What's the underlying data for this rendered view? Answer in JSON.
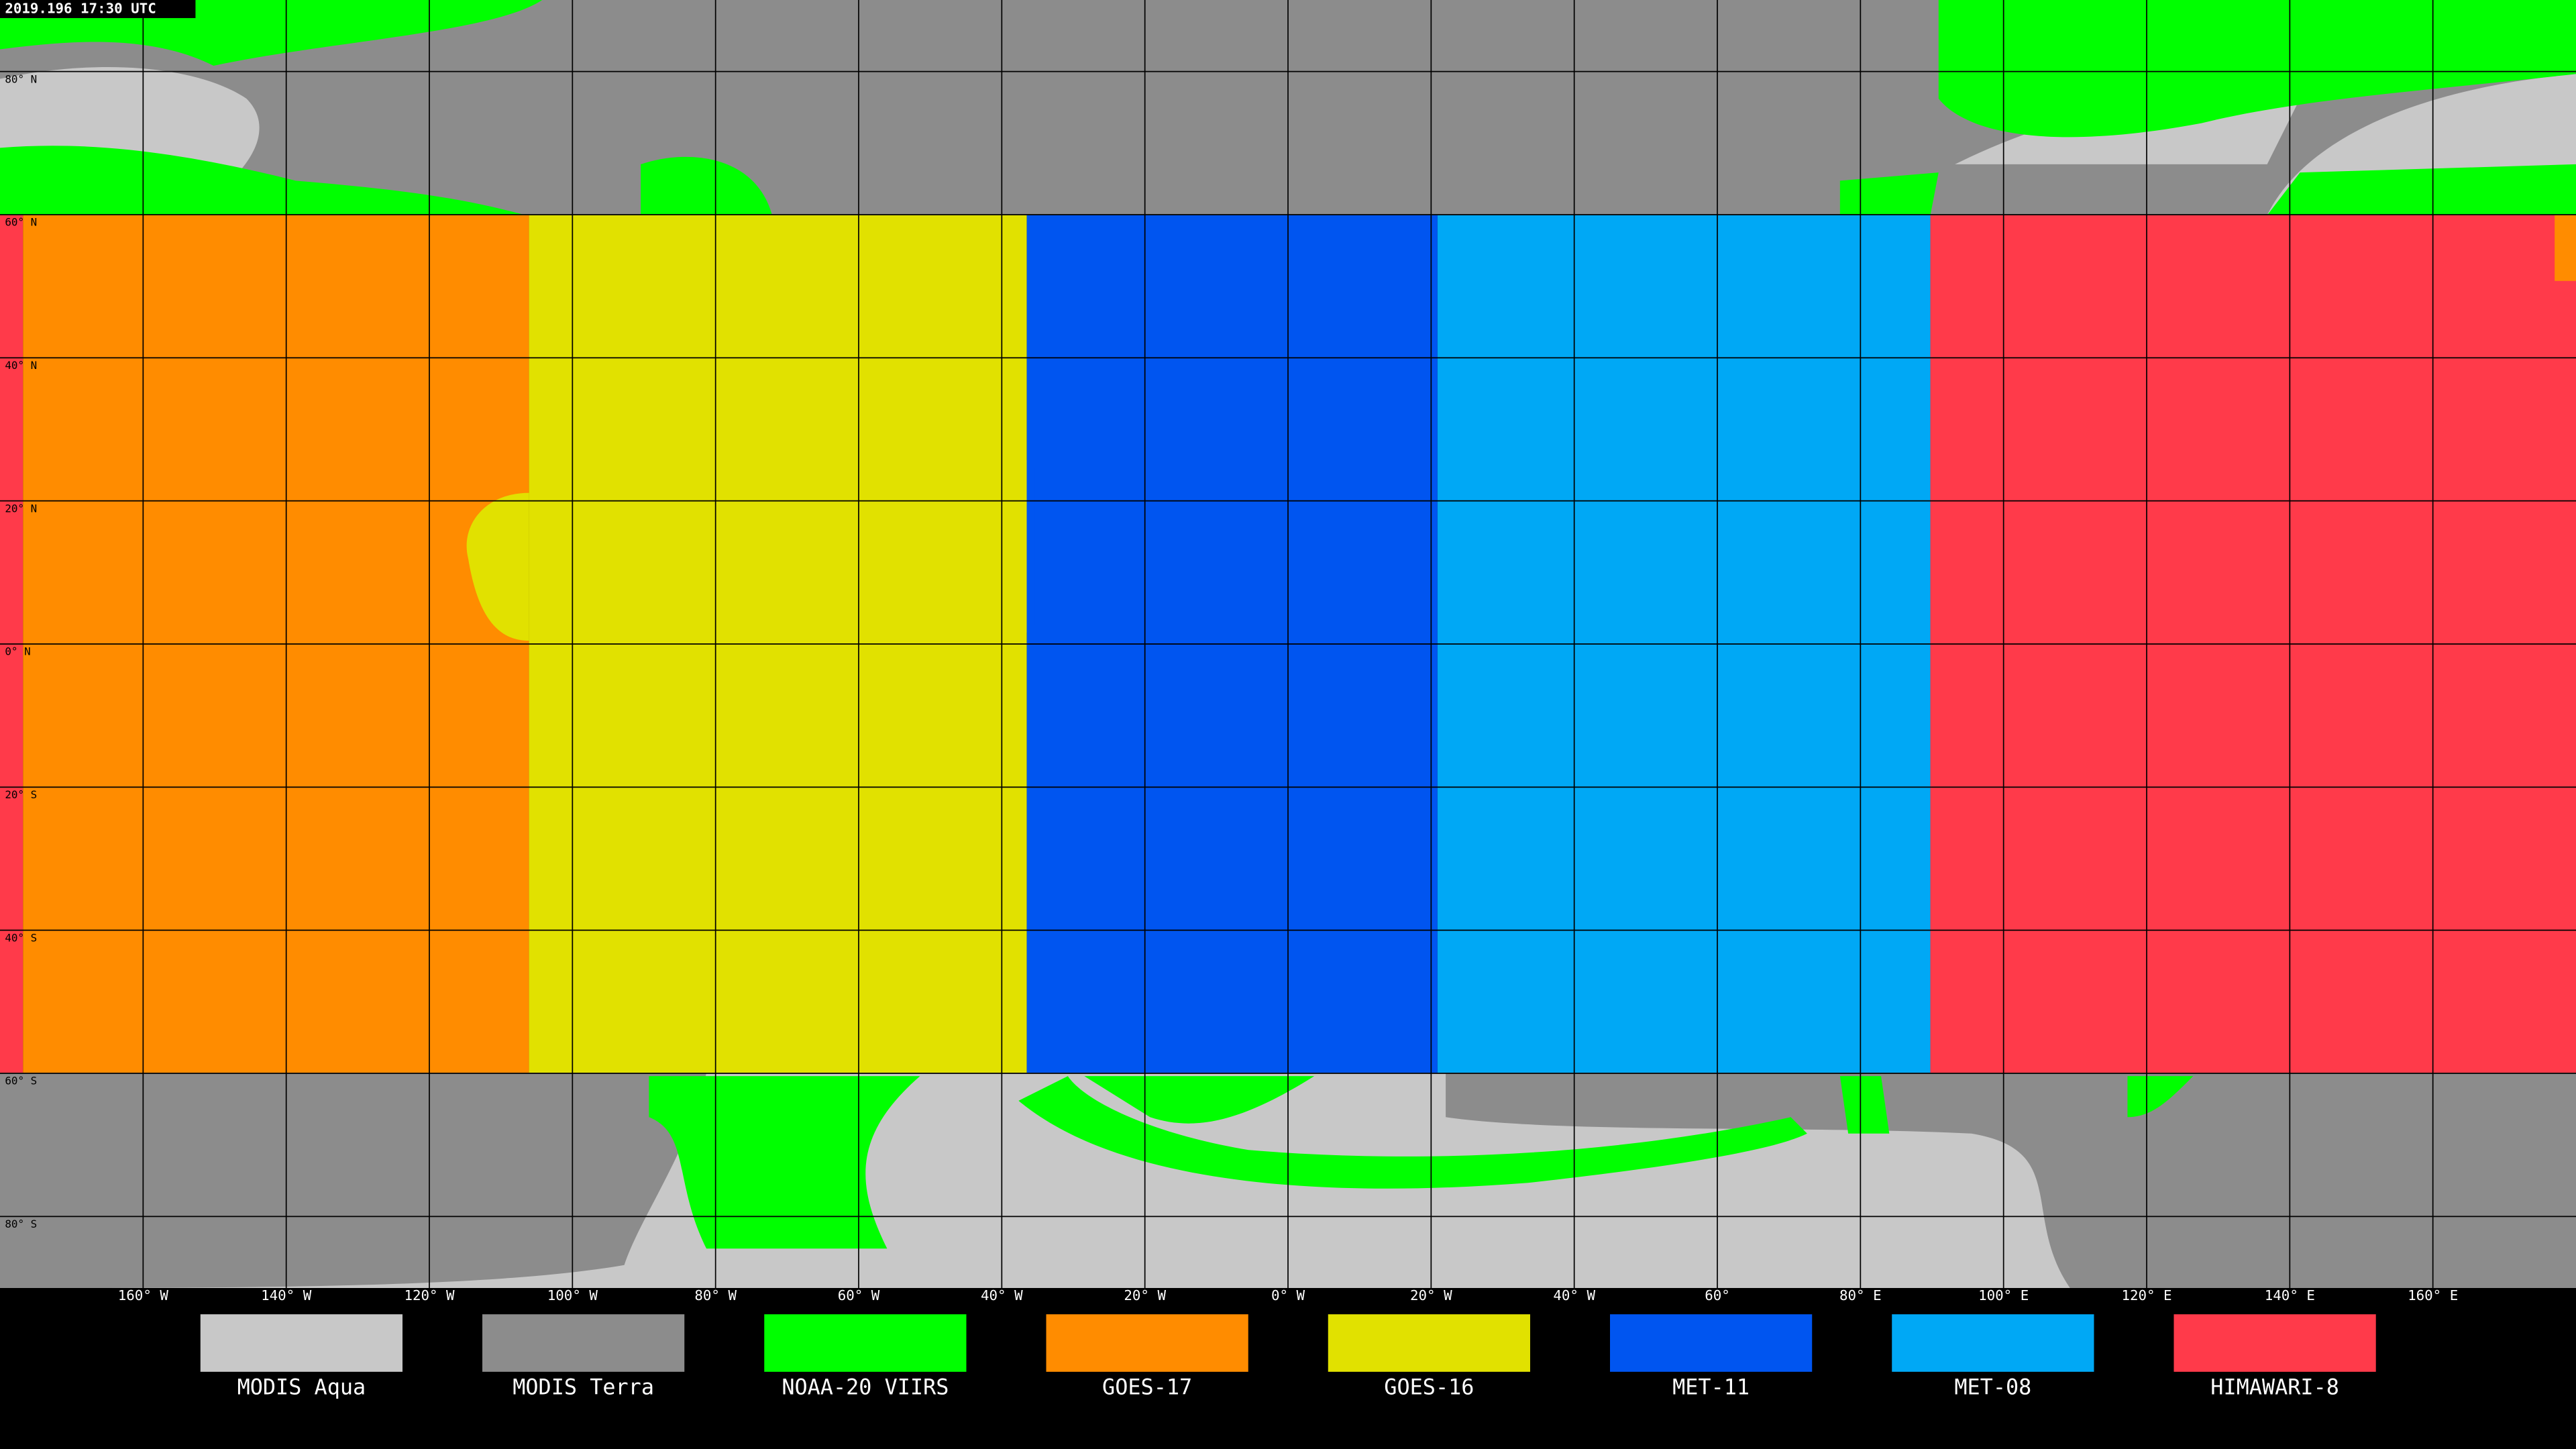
{
  "title": "2019.196 17:30 UTC",
  "latitude_labels": [
    "80° N",
    "60° N",
    "40° N",
    "20° N",
    "0° N",
    "20° S",
    "40° S",
    "60° S",
    "80° S"
  ],
  "longitude_labels": [
    "160° W",
    "140° W",
    "120° W",
    "100° W",
    "80° W",
    "60° W",
    "40° W",
    "20° W",
    "0° W",
    "20° W",
    "40° W",
    "60°",
    "80° E",
    "100° E",
    "120° E",
    "140° E",
    "160° E"
  ],
  "legend": [
    {
      "name": "MODIS Aqua",
      "color": "#c8c8c8"
    },
    {
      "name": "MODIS Terra",
      "color": "#8c8c8c"
    },
    {
      "name": "NOAA-20 VIIRS",
      "color": "#00ff00"
    },
    {
      "name": "GOES-17",
      "color": "#ff8c00"
    },
    {
      "name": "GOES-16",
      "color": "#e1e100"
    },
    {
      "name": "MET-11",
      "color": "#0055f0"
    },
    {
      "name": "MET-08",
      "color": "#00a8f5"
    },
    {
      "name": "HIMAWARI-8",
      "color": "#ff3a4a"
    }
  ]
}
